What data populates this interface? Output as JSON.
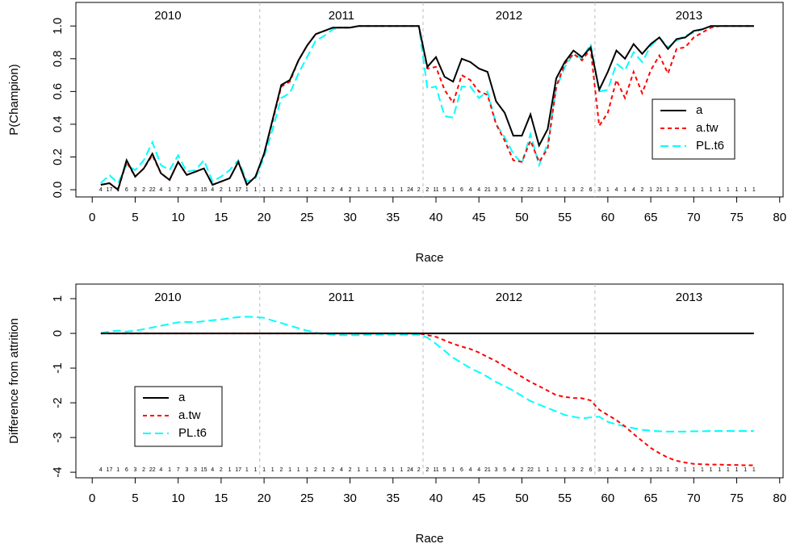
{
  "chart_data": [
    {
      "type": "line",
      "xlabel": "Race",
      "ylabel": "P(Champion)",
      "legend": "right",
      "xlim": [
        -1.9,
        80.4
      ],
      "ylim": [
        -0.044,
        1.144
      ],
      "xticks": [
        0,
        5,
        10,
        15,
        20,
        25,
        30,
        35,
        40,
        45,
        50,
        55,
        60,
        65,
        70,
        75,
        80
      ],
      "yticks": [
        {
          "value": 0,
          "label": "0.0"
        },
        {
          "value": 0.2,
          "label": "0.2"
        },
        {
          "value": 0.4,
          "label": "0.4"
        },
        {
          "value": 0.6,
          "label": "0.6"
        },
        {
          "value": 0.8,
          "label": "0.8"
        },
        {
          "value": 1,
          "label": "1.0"
        }
      ],
      "seasons": [
        "2010",
        "2011",
        "2012",
        "2013"
      ],
      "season_breaks": [
        19.5,
        38.5,
        58.5
      ],
      "positions": [
        4,
        17,
        1,
        6,
        3,
        2,
        22,
        4,
        1,
        7,
        3,
        3,
        15,
        4,
        2,
        1,
        17,
        1,
        1,
        1,
        1,
        2,
        1,
        1,
        1,
        2,
        1,
        2,
        4,
        2,
        1,
        1,
        1,
        3,
        1,
        1,
        24,
        2,
        2,
        11,
        5,
        1,
        6,
        4,
        4,
        21,
        3,
        5,
        4,
        2,
        22,
        1,
        1,
        1,
        1,
        3,
        2,
        6,
        3,
        1,
        4,
        1,
        4,
        2,
        1,
        21,
        1,
        3,
        1,
        1,
        1,
        1,
        1,
        1,
        1,
        1,
        1
      ],
      "x": [
        1,
        2,
        3,
        4,
        5,
        6,
        7,
        8,
        9,
        10,
        11,
        12,
        13,
        14,
        15,
        16,
        17,
        18,
        19,
        20,
        21,
        22,
        23,
        24,
        25,
        26,
        27,
        28,
        29,
        30,
        31,
        32,
        33,
        34,
        35,
        36,
        37,
        38,
        39,
        40,
        41,
        42,
        43,
        44,
        45,
        46,
        47,
        48,
        49,
        50,
        51,
        52,
        53,
        54,
        55,
        56,
        57,
        58,
        59,
        60,
        61,
        62,
        63,
        64,
        65,
        66,
        67,
        68,
        69,
        70,
        71,
        72,
        73,
        74,
        75,
        76,
        77
      ],
      "series": [
        {
          "name": "a",
          "color": "#000000",
          "dash": "solid",
          "values": [
            0.03,
            0.04,
            0.0,
            0.18,
            0.08,
            0.13,
            0.22,
            0.1,
            0.06,
            0.17,
            0.09,
            0.11,
            0.13,
            0.03,
            0.05,
            0.07,
            0.17,
            0.03,
            0.08,
            0.22,
            0.43,
            0.64,
            0.67,
            0.79,
            0.88,
            0.95,
            0.97,
            0.99,
            0.99,
            0.99,
            1,
            1,
            1,
            1,
            1,
            1,
            1,
            1,
            0.75,
            0.81,
            0.69,
            0.66,
            0.8,
            0.78,
            0.74,
            0.72,
            0.54,
            0.47,
            0.33,
            0.33,
            0.46,
            0.27,
            0.37,
            0.68,
            0.78,
            0.85,
            0.81,
            0.87,
            0.61,
            0.72,
            0.85,
            0.8,
            0.89,
            0.83,
            0.89,
            0.93,
            0.86,
            0.92,
            0.93,
            0.97,
            0.98,
            1,
            1,
            1,
            1,
            1,
            1
          ]
        },
        {
          "name": "a.tw",
          "color": "#ff0000",
          "dash": "dashed",
          "values": [
            0.03,
            0.04,
            0.0,
            0.17,
            0.08,
            0.13,
            0.21,
            0.1,
            0.06,
            0.17,
            0.09,
            0.11,
            0.13,
            0.03,
            0.05,
            0.07,
            0.17,
            0.03,
            0.08,
            0.22,
            0.42,
            0.63,
            0.66,
            0.79,
            0.88,
            0.95,
            0.97,
            0.99,
            0.99,
            0.99,
            1,
            1,
            1,
            1,
            1,
            1,
            1,
            1,
            0.74,
            0.75,
            0.61,
            0.53,
            0.7,
            0.67,
            0.6,
            0.58,
            0.4,
            0.3,
            0.18,
            0.17,
            0.3,
            0.17,
            0.25,
            0.63,
            0.77,
            0.83,
            0.79,
            0.86,
            0.39,
            0.47,
            0.67,
            0.56,
            0.72,
            0.59,
            0.73,
            0.82,
            0.71,
            0.86,
            0.87,
            0.93,
            0.96,
            0.99,
            1,
            1,
            1,
            1,
            1
          ]
        },
        {
          "name": "PL.t6",
          "color": "#00ffff",
          "dash": "longdash",
          "values": [
            0.04,
            0.09,
            0.04,
            0.15,
            0.12,
            0.18,
            0.29,
            0.15,
            0.12,
            0.21,
            0.11,
            0.12,
            0.18,
            0.05,
            0.08,
            0.12,
            0.18,
            0.05,
            0.07,
            0.2,
            0.37,
            0.56,
            0.59,
            0.71,
            0.81,
            0.91,
            0.94,
            0.98,
            0.99,
            0.99,
            1,
            1,
            1,
            1,
            1,
            1,
            1,
            1,
            0.62,
            0.63,
            0.45,
            0.44,
            0.63,
            0.63,
            0.56,
            0.6,
            0.4,
            0.32,
            0.22,
            0.16,
            0.34,
            0.15,
            0.28,
            0.62,
            0.75,
            0.83,
            0.8,
            0.89,
            0.6,
            0.61,
            0.77,
            0.73,
            0.84,
            0.78,
            0.88,
            0.93,
            0.87,
            0.91,
            0.94,
            0.96,
            0.98,
            1,
            1,
            1,
            1,
            1,
            1
          ]
        }
      ]
    },
    {
      "type": "line",
      "xlabel": "Race",
      "ylabel": "Difference from attrition",
      "legend": "left",
      "xlim": [
        -1.9,
        80.4
      ],
      "ylim": [
        -4.16,
        1.42
      ],
      "xticks": [
        0,
        5,
        10,
        15,
        20,
        25,
        30,
        35,
        40,
        45,
        50,
        55,
        60,
        65,
        70,
        75,
        80
      ],
      "yticks": [
        -4,
        -3,
        -2,
        -1,
        0,
        1
      ],
      "seasons": [
        "2010",
        "2011",
        "2012",
        "2013"
      ],
      "season_breaks": [
        19.5,
        38.5,
        58.5
      ],
      "positions": [
        4,
        17,
        1,
        6,
        3,
        2,
        22,
        4,
        1,
        7,
        3,
        3,
        15,
        4,
        2,
        1,
        17,
        1,
        1,
        1,
        1,
        2,
        1,
        1,
        1,
        2,
        1,
        2,
        4,
        2,
        1,
        1,
        1,
        3,
        1,
        1,
        24,
        2,
        2,
        11,
        5,
        1,
        6,
        4,
        4,
        21,
        3,
        5,
        4,
        2,
        22,
        1,
        1,
        1,
        1,
        3,
        2,
        6,
        3,
        1,
        4,
        1,
        4,
        2,
        1,
        21,
        1,
        3,
        1,
        1,
        1,
        1,
        1,
        1,
        1,
        1,
        1
      ],
      "x": [
        1,
        2,
        3,
        4,
        5,
        6,
        7,
        8,
        9,
        10,
        11,
        12,
        13,
        14,
        15,
        16,
        17,
        18,
        19,
        20,
        21,
        22,
        23,
        24,
        25,
        26,
        27,
        28,
        29,
        30,
        31,
        32,
        33,
        34,
        35,
        36,
        37,
        38,
        39,
        40,
        41,
        42,
        43,
        44,
        45,
        46,
        47,
        48,
        49,
        50,
        51,
        52,
        53,
        54,
        55,
        56,
        57,
        58,
        59,
        60,
        61,
        62,
        63,
        64,
        65,
        66,
        67,
        68,
        69,
        70,
        71,
        72,
        73,
        74,
        75,
        76,
        77
      ],
      "series": [
        {
          "name": "a",
          "color": "#000000",
          "dash": "solid",
          "values": [
            0,
            0,
            0,
            0,
            0,
            0,
            0,
            0,
            0,
            0,
            0,
            0,
            0,
            0,
            0,
            0,
            0,
            0,
            0,
            0,
            0,
            0,
            0,
            0,
            0,
            0,
            0,
            0,
            0,
            0,
            0,
            0,
            0,
            0,
            0,
            0,
            0,
            0,
            0,
            0,
            0,
            0,
            0,
            0,
            0,
            0,
            0,
            0,
            0,
            0,
            0,
            0,
            0,
            0,
            0,
            0,
            0,
            0,
            0,
            0,
            0,
            0,
            0,
            0,
            0,
            0,
            0,
            0,
            0,
            0,
            0,
            0,
            0,
            0,
            0,
            0,
            0
          ]
        },
        {
          "name": "a.tw",
          "color": "#ff0000",
          "dash": "dashed",
          "values": [
            0,
            0,
            0,
            0,
            0,
            0,
            0,
            0,
            0,
            0,
            0,
            0,
            0,
            0,
            0,
            0,
            0,
            0,
            0,
            0,
            0,
            0,
            0,
            0,
            0,
            0,
            0,
            0,
            0,
            0,
            0,
            0,
            0,
            0,
            0,
            0,
            0,
            0,
            -0.05,
            -0.1,
            -0.2,
            -0.3,
            -0.38,
            -0.45,
            -0.55,
            -0.68,
            -0.8,
            -0.95,
            -1.1,
            -1.25,
            -1.4,
            -1.52,
            -1.65,
            -1.78,
            -1.83,
            -1.86,
            -1.87,
            -1.93,
            -2.2,
            -2.35,
            -2.5,
            -2.68,
            -2.9,
            -3.1,
            -3.3,
            -3.45,
            -3.58,
            -3.67,
            -3.72,
            -3.76,
            -3.77,
            -3.78,
            -3.78,
            -3.79,
            -3.79,
            -3.8,
            -3.8
          ]
        },
        {
          "name": "PL.t6",
          "color": "#00ffff",
          "dash": "longdash",
          "values": [
            0.01,
            0.05,
            0.08,
            0.05,
            0.08,
            0.12,
            0.17,
            0.22,
            0.27,
            0.32,
            0.33,
            0.32,
            0.35,
            0.38,
            0.4,
            0.44,
            0.47,
            0.48,
            0.47,
            0.45,
            0.37,
            0.3,
            0.22,
            0.15,
            0.08,
            0.02,
            -0.02,
            -0.04,
            -0.05,
            -0.05,
            -0.05,
            -0.04,
            -0.04,
            -0.04,
            -0.04,
            -0.04,
            -0.04,
            -0.04,
            -0.12,
            -0.3,
            -0.5,
            -0.7,
            -0.85,
            -1.0,
            -1.12,
            -1.25,
            -1.4,
            -1.52,
            -1.65,
            -1.8,
            -1.95,
            -2.05,
            -2.15,
            -2.25,
            -2.35,
            -2.4,
            -2.45,
            -2.42,
            -2.4,
            -2.55,
            -2.62,
            -2.68,
            -2.73,
            -2.78,
            -2.8,
            -2.82,
            -2.83,
            -2.83,
            -2.83,
            -2.82,
            -2.82,
            -2.81,
            -2.81,
            -2.81,
            -2.81,
            -2.81,
            -2.81
          ]
        }
      ]
    }
  ]
}
